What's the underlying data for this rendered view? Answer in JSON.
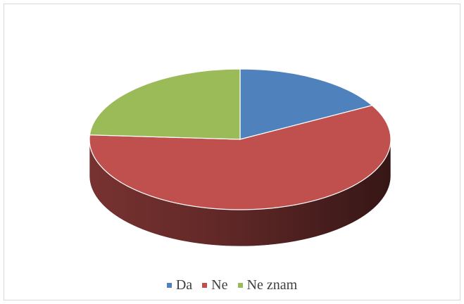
{
  "chart_data": {
    "type": "pie",
    "three_d": true,
    "title": "",
    "categories": [
      "Da",
      "Ne",
      "Ne znam"
    ],
    "values": [
      17,
      59,
      24
    ],
    "colors": [
      "#4f81bd",
      "#c0504d",
      "#9bbb59"
    ],
    "legend_position": "bottom"
  }
}
